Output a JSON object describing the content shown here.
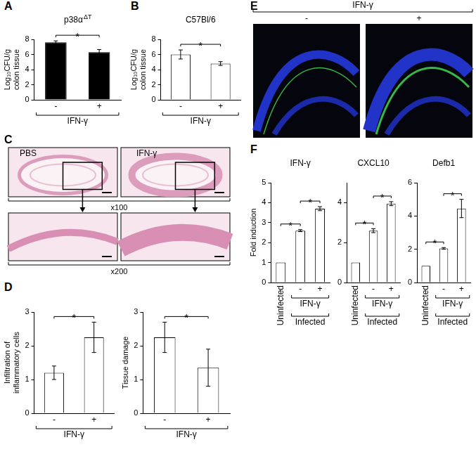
{
  "chart_data": [
    {
      "panel": "A",
      "type": "bar",
      "title": "p38α",
      "title_superscript": "ΔT",
      "ylabel": [
        "Log₁₀CFU/g",
        "colon tissue"
      ],
      "categories": [
        "-",
        "+"
      ],
      "values": [
        7.6,
        6.3
      ],
      "errors": [
        0.2,
        0.35
      ],
      "color": "#000000",
      "ylim": [
        0,
        8
      ],
      "yticks": [
        0,
        2,
        4,
        6,
        8
      ],
      "grid": false,
      "groups": [
        [
          {
            "label": "IFN-γ",
            "from": 0,
            "to": 1
          }
        ]
      ],
      "significance": [
        {
          "from": 0,
          "to": 1,
          "label": "*"
        }
      ]
    },
    {
      "panel": "B",
      "type": "bar",
      "title": "C57Bl/6",
      "ylabel": [
        "Log₁₀CFU/g",
        "colon tissue"
      ],
      "categories": [
        "-",
        "+"
      ],
      "values": [
        6.0,
        4.8
      ],
      "errors": [
        0.6,
        0.25
      ],
      "color": "#ffffff",
      "ylim": [
        0,
        8
      ],
      "yticks": [
        0,
        2,
        4,
        6,
        8
      ],
      "grid": false,
      "groups": [
        [
          {
            "label": "IFN-γ",
            "from": 0,
            "to": 1
          }
        ]
      ],
      "significance": [
        {
          "from": 0,
          "to": 1,
          "label": "*"
        }
      ]
    },
    {
      "panel": "D",
      "type": "bar",
      "ylabel": [
        "Infiltration of",
        "inflammatory cells"
      ],
      "categories": [
        "-",
        "+"
      ],
      "values": [
        1.2,
        2.25
      ],
      "errors": [
        0.2,
        0.45
      ],
      "color": "#ffffff",
      "ylim": [
        0,
        3
      ],
      "yticks": [
        0,
        1,
        2,
        3
      ],
      "grid": false,
      "groups": [
        [
          {
            "label": "IFN-γ",
            "from": 0,
            "to": 1
          }
        ]
      ],
      "significance": [
        {
          "from": 0,
          "to": 1,
          "label": "*"
        }
      ]
    },
    {
      "type": "bar",
      "ylabel": [
        "Tissue damage"
      ],
      "categories": [
        "-",
        "+"
      ],
      "values": [
        2.25,
        1.35
      ],
      "errors": [
        0.45,
        0.55
      ],
      "color": "#ffffff",
      "ylim": [
        0,
        3
      ],
      "yticks": [
        0,
        1,
        2,
        3
      ],
      "grid": false,
      "groups": [
        [
          {
            "label": "IFN-γ",
            "from": 0,
            "to": 1
          }
        ]
      ],
      "significance": [
        {
          "from": 0,
          "to": 1,
          "label": "*"
        }
      ]
    },
    {
      "panel": "F",
      "type": "bar",
      "title": "IFN-γ",
      "ylabel": [
        "Fold induction"
      ],
      "categories": [
        "Uninfected",
        "-",
        "+"
      ],
      "values": [
        1,
        2.6,
        3.7
      ],
      "errors": [
        0,
        0.05,
        0.1
      ],
      "color": "#ffffff",
      "ylim": [
        0,
        5
      ],
      "yticks": [
        0,
        1,
        2,
        3,
        4,
        5
      ],
      "grid": false,
      "groups": [
        [
          {
            "label": "IFN-γ",
            "from": 1,
            "to": 2
          }
        ],
        [
          {
            "label": "Infected",
            "from": 1,
            "to": 2
          }
        ]
      ],
      "significance": [
        {
          "from": 0,
          "to": 1,
          "label": "*"
        },
        {
          "from": 1,
          "to": 2,
          "label": "*"
        }
      ]
    },
    {
      "type": "bar",
      "title": "CXCL10",
      "categories": [
        "Uninfected",
        "-",
        "+"
      ],
      "values": [
        1,
        2.6,
        3.95
      ],
      "errors": [
        0,
        0.1,
        0.1
      ],
      "color": "#ffffff",
      "ylim": [
        0,
        5
      ],
      "yticks": [
        0,
        2,
        4
      ],
      "grid": false,
      "groups": [
        [
          {
            "label": "IFN-γ",
            "from": 1,
            "to": 2
          }
        ],
        [
          {
            "label": "Infected",
            "from": 1,
            "to": 2
          }
        ]
      ],
      "significance": [
        {
          "from": 0,
          "to": 1,
          "label": "*"
        },
        {
          "from": 1,
          "to": 2,
          "label": "*"
        }
      ]
    },
    {
      "type": "bar",
      "title": "Defb1",
      "categories": [
        "Uninfected",
        "-",
        "+"
      ],
      "values": [
        1,
        2.05,
        4.45
      ],
      "errors": [
        0,
        0.05,
        0.55
      ],
      "color": "#ffffff",
      "ylim": [
        0,
        6
      ],
      "yticks": [
        0,
        2,
        4,
        6
      ],
      "grid": false,
      "groups": [
        [
          {
            "label": "IFN-γ",
            "from": 1,
            "to": 2
          }
        ],
        [
          {
            "label": "Infected",
            "from": 1,
            "to": 2
          }
        ]
      ],
      "significance": [
        {
          "from": 0,
          "to": 1,
          "label": "*"
        },
        {
          "from": 1,
          "to": 2,
          "label": "*"
        }
      ]
    }
  ],
  "images": [
    {
      "panel": "C",
      "columns": [
        "PBS",
        "IFN-γ"
      ],
      "rows": [
        "x100",
        "x200"
      ]
    },
    {
      "panel": "E",
      "title": "IFN-γ",
      "columns": [
        "-",
        "+"
      ]
    }
  ]
}
